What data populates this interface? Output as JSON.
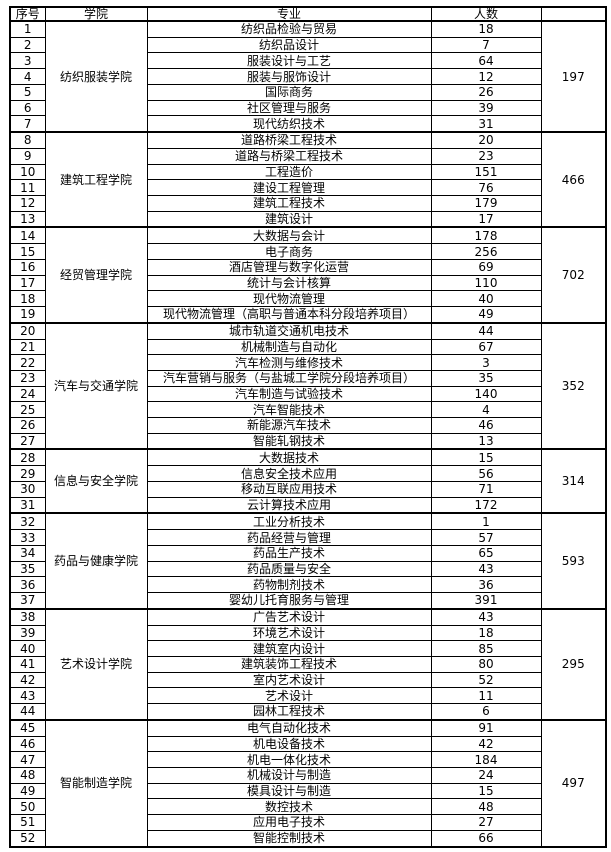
{
  "colors": {
    "border": "#000000",
    "text": "#000000",
    "background": "#ffffff"
  },
  "table": {
    "headers": [
      "序号",
      "学院",
      "专业",
      "人数",
      ""
    ],
    "sections": [
      {
        "college": "纺织服装学院",
        "total": "197",
        "majors": [
          {
            "no": "1",
            "name": "纺织品检验与贸易",
            "count": "18"
          },
          {
            "no": "2",
            "name": "纺织品设计",
            "count": "7"
          },
          {
            "no": "3",
            "name": "服装设计与工艺",
            "count": "64"
          },
          {
            "no": "4",
            "name": "服装与服饰设计",
            "count": "12"
          },
          {
            "no": "5",
            "name": "国际商务",
            "count": "26"
          },
          {
            "no": "6",
            "name": "社区管理与服务",
            "count": "39"
          },
          {
            "no": "7",
            "name": "现代纺织技术",
            "count": "31"
          }
        ]
      },
      {
        "college": "建筑工程学院",
        "total": "466",
        "majors": [
          {
            "no": "8",
            "name": "道路桥梁工程技术",
            "count": "20"
          },
          {
            "no": "9",
            "name": "道路与桥梁工程技术",
            "count": "23"
          },
          {
            "no": "10",
            "name": "工程造价",
            "count": "151"
          },
          {
            "no": "11",
            "name": "建设工程管理",
            "count": "76"
          },
          {
            "no": "12",
            "name": "建筑工程技术",
            "count": "179"
          },
          {
            "no": "13",
            "name": "建筑设计",
            "count": "17"
          }
        ]
      },
      {
        "college": "经贸管理学院",
        "total": "702",
        "majors": [
          {
            "no": "14",
            "name": "大数据与会计",
            "count": "178"
          },
          {
            "no": "15",
            "name": "电子商务",
            "count": "256"
          },
          {
            "no": "16",
            "name": "酒店管理与数字化运营",
            "count": "69"
          },
          {
            "no": "17",
            "name": "统计与会计核算",
            "count": "110"
          },
          {
            "no": "18",
            "name": "现代物流管理",
            "count": "40"
          },
          {
            "no": "19",
            "name": "现代物流管理（高职与普通本科分段培养项目）",
            "count": "49"
          }
        ]
      },
      {
        "college": "汽车与交通学院",
        "total": "352",
        "majors": [
          {
            "no": "20",
            "name": "城市轨道交通机电技术",
            "count": "44"
          },
          {
            "no": "21",
            "name": "机械制造与自动化",
            "count": "67"
          },
          {
            "no": "22",
            "name": "汽车检测与维修技术",
            "count": "3"
          },
          {
            "no": "23",
            "name": "汽车营销与服务（与盐城工学院分段培养项目）",
            "count": "35"
          },
          {
            "no": "24",
            "name": "汽车制造与试验技术",
            "count": "140"
          },
          {
            "no": "25",
            "name": "汽车智能技术",
            "count": "4"
          },
          {
            "no": "26",
            "name": "新能源汽车技术",
            "count": "46"
          },
          {
            "no": "27",
            "name": "智能轧钢技术",
            "count": "13"
          }
        ]
      },
      {
        "college": "信息与安全学院",
        "total": "314",
        "majors": [
          {
            "no": "28",
            "name": "大数据技术",
            "count": "15"
          },
          {
            "no": "29",
            "name": "信息安全技术应用",
            "count": "56"
          },
          {
            "no": "30",
            "name": "移动互联应用技术",
            "count": "71"
          },
          {
            "no": "31",
            "name": "云计算技术应用",
            "count": "172"
          }
        ]
      },
      {
        "college": "药品与健康学院",
        "total": "593",
        "majors": [
          {
            "no": "32",
            "name": "工业分析技术",
            "count": "1"
          },
          {
            "no": "33",
            "name": "药品经营与管理",
            "count": "57"
          },
          {
            "no": "34",
            "name": "药品生产技术",
            "count": "65"
          },
          {
            "no": "35",
            "name": "药品质量与安全",
            "count": "43"
          },
          {
            "no": "36",
            "name": "药物制剂技术",
            "count": "36"
          },
          {
            "no": "37",
            "name": "婴幼儿托育服务与管理",
            "count": "391"
          }
        ]
      },
      {
        "college": "艺术设计学院",
        "total": "295",
        "majors": [
          {
            "no": "38",
            "name": "广告艺术设计",
            "count": "43"
          },
          {
            "no": "39",
            "name": "环境艺术设计",
            "count": "18"
          },
          {
            "no": "40",
            "name": "建筑室内设计",
            "count": "85"
          },
          {
            "no": "41",
            "name": "建筑装饰工程技术",
            "count": "80"
          },
          {
            "no": "42",
            "name": "室内艺术设计",
            "count": "52"
          },
          {
            "no": "43",
            "name": "艺术设计",
            "count": "11"
          },
          {
            "no": "44",
            "name": "园林工程技术",
            "count": "6"
          }
        ]
      },
      {
        "college": "智能制造学院",
        "total": "497",
        "majors": [
          {
            "no": "45",
            "name": "电气自动化技术",
            "count": "91"
          },
          {
            "no": "46",
            "name": "机电设备技术",
            "count": "42"
          },
          {
            "no": "47",
            "name": "机电一体化技术",
            "count": "184"
          },
          {
            "no": "48",
            "name": "机械设计与制造",
            "count": "24"
          },
          {
            "no": "49",
            "name": "模具设计与制造",
            "count": "15"
          },
          {
            "no": "50",
            "name": "数控技术",
            "count": "48"
          },
          {
            "no": "51",
            "name": "应用电子技术",
            "count": "27"
          },
          {
            "no": "52",
            "name": "智能控制技术",
            "count": "66"
          }
        ]
      }
    ]
  }
}
